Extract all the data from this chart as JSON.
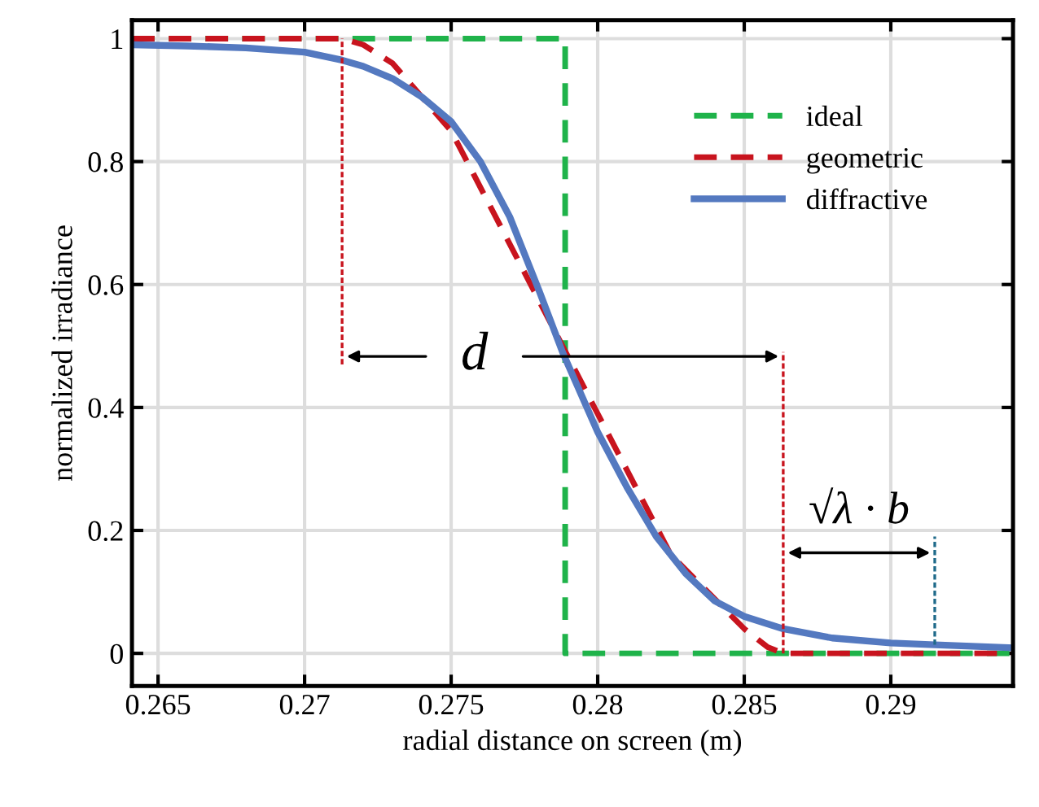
{
  "chart_data": {
    "type": "line",
    "xlabel": "radial distance on screen (m)",
    "ylabel": "normalized irradiance",
    "xlim": [
      0.26411,
      0.29417
    ],
    "ylim": [
      -0.053,
      1.03
    ],
    "xticks": [
      0.265,
      0.27,
      0.275,
      0.28,
      0.285,
      0.29
    ],
    "yticks": [
      0,
      0.2,
      0.4,
      0.6,
      0.8,
      1
    ],
    "grid": true,
    "legend": "top right",
    "series": [
      {
        "name": "ideal",
        "color": "#1fb34a",
        "line_style": "dashed",
        "x": [
          0.26411,
          0.27889,
          0.27889,
          0.29417
        ],
        "values": [
          1,
          1,
          0,
          0
        ]
      },
      {
        "name": "geometric",
        "color": "#c8141e",
        "line_style": "dashed",
        "x": [
          0.26411,
          0.27128,
          0.272,
          0.273,
          0.275,
          0.2788,
          0.2825,
          0.285,
          0.2858,
          0.28633,
          0.29417
        ],
        "values": [
          1,
          1,
          0.99,
          0.96,
          0.85,
          0.5,
          0.16,
          0.04,
          0.01,
          0,
          0
        ]
      },
      {
        "name": "diffractive",
        "color": "#5479c0",
        "line_style": "solid",
        "x": [
          0.26411,
          0.266,
          0.268,
          0.27,
          0.27128,
          0.272,
          0.273,
          0.274,
          0.275,
          0.276,
          0.277,
          0.278,
          0.2788,
          0.28,
          0.281,
          0.282,
          0.283,
          0.284,
          0.285,
          0.28633,
          0.288,
          0.29,
          0.2915,
          0.29417
        ],
        "values": [
          0.99,
          0.988,
          0.985,
          0.978,
          0.965,
          0.955,
          0.935,
          0.905,
          0.865,
          0.8,
          0.71,
          0.59,
          0.49,
          0.36,
          0.27,
          0.19,
          0.13,
          0.085,
          0.06,
          0.04,
          0.025,
          0.017,
          0.014,
          0.009
        ]
      },
      {
        "color": "#c8141e",
        "line_style": "dotted",
        "x": [
          0.27128,
          0.27128
        ],
        "values": [
          0.47,
          1
        ]
      },
      {
        "color": "#c8141e",
        "line_style": "dotted",
        "x": [
          0.28633,
          0.28633
        ],
        "values": [
          0,
          0.49
        ]
      },
      {
        "color": "#1f6a8a",
        "line_style": "dotted",
        "x": [
          0.2915,
          0.2915
        ],
        "values": [
          0.014,
          0.19
        ]
      }
    ],
    "annotations": [
      "d",
      "√λ · b"
    ]
  }
}
